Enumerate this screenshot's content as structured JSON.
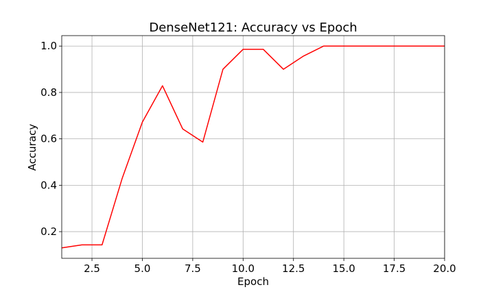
{
  "chart_data": {
    "type": "line",
    "title": "DenseNet121: Accuracy vs Epoch",
    "xlabel": "Epoch",
    "ylabel": "Accuracy",
    "xlim": [
      1,
      20
    ],
    "ylim": [
      0.085,
      1.045
    ],
    "grid": true,
    "x_ticks": [
      2.5,
      5.0,
      7.5,
      10.0,
      12.5,
      15.0,
      17.5,
      20.0
    ],
    "x_tick_labels": [
      "2.5",
      "5.0",
      "7.5",
      "10.0",
      "12.5",
      "15.0",
      "17.5",
      "20.0"
    ],
    "y_ticks": [
      0.2,
      0.4,
      0.6,
      0.8,
      1.0
    ],
    "y_tick_labels": [
      "0.2",
      "0.4",
      "0.6",
      "0.8",
      "1.0"
    ],
    "series": [
      {
        "color": "#ff0000",
        "x": [
          1,
          2,
          3,
          4,
          5,
          6,
          7,
          8,
          9,
          10,
          11,
          12,
          13,
          14,
          15,
          16,
          17,
          18,
          19,
          20
        ],
        "y": [
          0.13,
          0.143,
          0.143,
          0.43,
          0.672,
          0.829,
          0.643,
          0.586,
          0.9,
          0.986,
          0.986,
          0.9,
          0.957,
          1.0,
          1.0,
          1.0,
          1.0,
          1.0,
          1.0,
          1.0
        ]
      }
    ]
  }
}
